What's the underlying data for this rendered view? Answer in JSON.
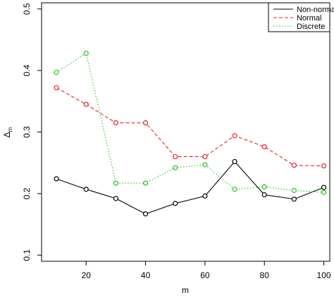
{
  "chart_data": {
    "type": "line",
    "xlabel": "m",
    "ylabel": {
      "base": "Δ",
      "sub": "m"
    },
    "x": [
      10,
      20,
      30,
      40,
      50,
      60,
      70,
      80,
      90,
      100
    ],
    "xlim": [
      5,
      102
    ],
    "ylim": [
      0.09,
      0.51
    ],
    "xticks": [
      20,
      40,
      60,
      80,
      100
    ],
    "yticks": [
      0.1,
      0.2,
      0.3,
      0.4,
      0.5
    ],
    "grid": false,
    "legend_position": "top-right",
    "series": [
      {
        "name": "Non-norma",
        "color": "#000000",
        "dash": "solid",
        "values": [
          0.224,
          0.207,
          0.192,
          0.167,
          0.184,
          0.196,
          0.252,
          0.198,
          0.191,
          0.21
        ]
      },
      {
        "name": "Normal",
        "color": "#e8231b",
        "dash": "dashed",
        "values": [
          0.372,
          0.345,
          0.315,
          0.315,
          0.26,
          0.26,
          0.294,
          0.276,
          0.246,
          0.245
        ]
      },
      {
        "name": "Discrete",
        "color": "#1ec41e",
        "dash": "dotted",
        "values": [
          0.397,
          0.428,
          0.217,
          0.217,
          0.242,
          0.247,
          0.207,
          0.211,
          0.205,
          0.202
        ]
      }
    ]
  }
}
